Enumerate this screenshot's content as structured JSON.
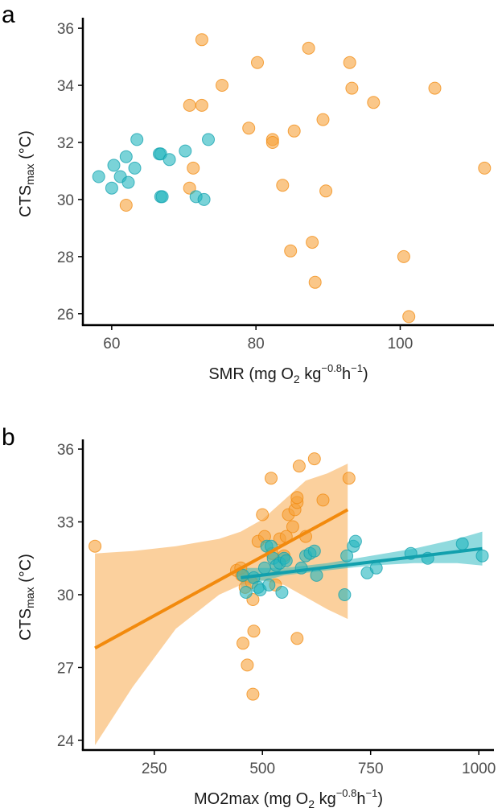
{
  "colors": {
    "orange": "#F7A23B",
    "orange_line": "#F28A0D",
    "teal": "#21B5BE",
    "teal_line": "#12A0AD",
    "axis": "#000000",
    "tick_text": "#4d4d4d"
  },
  "chart_data": [
    {
      "panel": "a",
      "type": "scatter",
      "xlabel": {
        "main": "SMR (mg O",
        "sub": "2",
        "mid": "  kg",
        "sup": "−0.8",
        "h": "h",
        "hsup": "−1",
        "close": ")"
      },
      "ylabel": {
        "main": "CTS",
        "sub": "max",
        "rest": " (°C)"
      },
      "xlim": [
        56,
        113
      ],
      "ylim": [
        25.6,
        36.2
      ],
      "xticks": [
        60,
        80,
        100
      ],
      "yticks": [
        26,
        28,
        30,
        32,
        34,
        36
      ],
      "xtick_labels": [
        "60",
        "80",
        "100"
      ],
      "ytick_labels": [
        "26",
        "28",
        "30",
        "32",
        "34",
        "36"
      ],
      "series": [
        {
          "name": "orange",
          "points": [
            [
              72.5,
              35.6
            ],
            [
              80.2,
              34.8
            ],
            [
              87.3,
              35.3
            ],
            [
              93.0,
              34.8
            ],
            [
              75.3,
              34.0
            ],
            [
              93.3,
              33.9
            ],
            [
              104.8,
              33.9
            ],
            [
              70.8,
              33.3
            ],
            [
              72.5,
              33.3
            ],
            [
              96.3,
              33.4
            ],
            [
              79.0,
              32.5
            ],
            [
              82.3,
              32.1
            ],
            [
              82.3,
              32.0
            ],
            [
              85.3,
              32.4
            ],
            [
              89.3,
              32.8
            ],
            [
              71.3,
              31.1
            ],
            [
              111.7,
              31.1
            ],
            [
              70.8,
              30.4
            ],
            [
              83.7,
              30.5
            ],
            [
              89.7,
              30.3
            ],
            [
              62.0,
              29.8
            ],
            [
              84.8,
              28.2
            ],
            [
              87.8,
              28.5
            ],
            [
              100.5,
              28.0
            ],
            [
              88.2,
              27.1
            ],
            [
              101.2,
              25.9
            ]
          ]
        },
        {
          "name": "teal",
          "points": [
            [
              58.2,
              30.8
            ],
            [
              60.3,
              31.2
            ],
            [
              60.0,
              30.4
            ],
            [
              61.2,
              30.8
            ],
            [
              62.0,
              31.5
            ],
            [
              63.5,
              32.1
            ],
            [
              63.2,
              31.1
            ],
            [
              62.3,
              30.6
            ],
            [
              66.6,
              31.6
            ],
            [
              66.8,
              31.6
            ],
            [
              68.0,
              31.4
            ],
            [
              66.8,
              30.1
            ],
            [
              67.0,
              30.1
            ],
            [
              70.2,
              31.7
            ],
            [
              73.4,
              32.1
            ],
            [
              71.7,
              30.1
            ],
            [
              72.8,
              30.0
            ]
          ]
        }
      ]
    },
    {
      "panel": "b",
      "type": "scatter",
      "xlabel": {
        "main": "MO2max (mg O",
        "sub": "2",
        "mid": "  kg",
        "sup": "−0.8",
        "h": "h",
        "hsup": "−1",
        "close": ")"
      },
      "ylabel": {
        "main": "CTS",
        "sub": "max",
        "rest": " (°C)"
      },
      "xlim": [
        85,
        1035
      ],
      "ylim": [
        23.6,
        36.2
      ],
      "xticks": [
        250,
        500,
        750,
        1000
      ],
      "yticks": [
        24,
        27,
        30,
        33,
        36
      ],
      "xtick_labels": [
        "250",
        "500",
        "750",
        "1000"
      ],
      "ytick_labels": [
        "24",
        "27",
        "30",
        "33",
        "36"
      ],
      "series": [
        {
          "name": "orange",
          "points": [
            [
              113,
              32.0
            ],
            [
              440,
              31.0
            ],
            [
              450,
              31.1
            ],
            [
              452,
              30.8
            ],
            [
              460,
              30.3
            ],
            [
              475,
              30.5
            ],
            [
              478,
              29.8
            ],
            [
              480,
              28.5
            ],
            [
              478,
              25.9
            ],
            [
              465,
              27.1
            ],
            [
              455,
              28.0
            ],
            [
              490,
              32.2
            ],
            [
              500,
              33.3
            ],
            [
              505,
              32.4
            ],
            [
              520,
              34.8
            ],
            [
              522,
              31.7
            ],
            [
              530,
              30.4
            ],
            [
              540,
              32.3
            ],
            [
              550,
              31.6
            ],
            [
              555,
              32.4
            ],
            [
              560,
              33.3
            ],
            [
              570,
              32.8
            ],
            [
              575,
              33.5
            ],
            [
              580,
              33.8
            ],
            [
              580,
              34.0
            ],
            [
              585,
              35.3
            ],
            [
              600,
              32.4
            ],
            [
              620,
              35.6
            ],
            [
              640,
              33.9
            ],
            [
              700,
              34.8
            ],
            [
              580,
              28.2
            ]
          ],
          "fit": {
            "x": [
              113,
              697
            ],
            "y": [
              27.8,
              33.5
            ]
          },
          "band": {
            "x": [
              113,
              200,
              300,
              400,
              450,
              500,
              550,
              600,
              650,
              697
            ],
            "lower": [
              23.8,
              26.2,
              28.6,
              30.0,
              30.4,
              30.6,
              30.4,
              29.9,
              29.4,
              29.0
            ],
            "upper": [
              31.7,
              31.8,
              32.0,
              32.3,
              32.6,
              33.1,
              33.9,
              34.7,
              35.0,
              35.4
            ]
          }
        },
        {
          "name": "teal",
          "points": [
            [
              455,
              30.8
            ],
            [
              462,
              30.1
            ],
            [
              480,
              30.7
            ],
            [
              490,
              30.3
            ],
            [
              495,
              30.2
            ],
            [
              505,
              31.1
            ],
            [
              510,
              32.0
            ],
            [
              515,
              30.4
            ],
            [
              520,
              32.0
            ],
            [
              525,
              31.5
            ],
            [
              532,
              31.2
            ],
            [
              540,
              31.3
            ],
            [
              545,
              30.1
            ],
            [
              550,
              31.5
            ],
            [
              555,
              31.4
            ],
            [
              590,
              31.1
            ],
            [
              600,
              31.6
            ],
            [
              610,
              31.7
            ],
            [
              620,
              31.8
            ],
            [
              625,
              30.8
            ],
            [
              690,
              30.0
            ],
            [
              695,
              31.6
            ],
            [
              710,
              32.0
            ],
            [
              715,
              32.2
            ],
            [
              742,
              30.9
            ],
            [
              763,
              31.1
            ],
            [
              843,
              31.7
            ],
            [
              882,
              31.5
            ],
            [
              962,
              32.1
            ],
            [
              1008,
              31.6
            ]
          ],
          "fit": {
            "x": [
              450,
              1008
            ],
            "y": [
              30.7,
              31.9
            ]
          },
          "band": {
            "x": [
              450,
              550,
              650,
              750,
              850,
              950,
              1008
            ],
            "lower": [
              30.3,
              30.8,
              31.0,
              31.2,
              31.3,
              31.3,
              31.2
            ],
            "upper": [
              31.1,
              31.1,
              31.3,
              31.6,
              31.9,
              32.3,
              32.6
            ]
          }
        }
      ]
    }
  ]
}
